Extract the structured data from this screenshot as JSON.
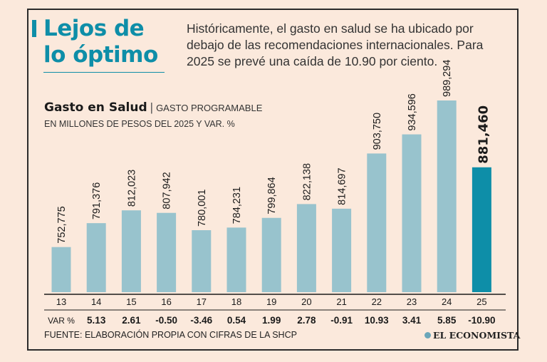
{
  "headline": "Lejos de lo óptimo",
  "intro": "Históricamente, el gasto en salud se ha ubicado por debajo de las recomendaciones internacionales. Para 2025 se prevé una caída de 10.90 por ciento.",
  "footer": {
    "source": "FUENTE: ELABORACIÓN PROPIA CON CIFRAS DE LA SHCP",
    "logo": "EL ECONOMISTA"
  },
  "colors": {
    "bar": "#98c3cd",
    "highlight": "#0e8ea8",
    "accent": "#0e8ea8",
    "background": "#fbe9dc"
  },
  "chart_data": {
    "type": "bar",
    "title": "Gasto en Salud",
    "subtitle": "GASTO PROGRAMABLE",
    "units": "EN MILLONES DE PESOS DEL 2025 Y VAR. %",
    "categories": [
      "13",
      "14",
      "15",
      "16",
      "17",
      "18",
      "19",
      "20",
      "21",
      "22",
      "23",
      "24",
      "25"
    ],
    "values": [
      752775,
      791376,
      812023,
      807942,
      780001,
      784231,
      799864,
      822138,
      814697,
      903750,
      934596,
      989294,
      881460
    ],
    "value_labels": [
      "752,775",
      "791,376",
      "812,023",
      "807,942",
      "780,001",
      "784,231",
      "799,864",
      "822,138",
      "814,697",
      "903,750",
      "934,596",
      "989,294",
      "881,460"
    ],
    "var_label": "VAR %",
    "var": [
      "5.13",
      "2.61",
      "-0.50",
      "-3.46",
      "0.54",
      "1.99",
      "2.78",
      "-0.91",
      "10.93",
      "3.41",
      "5.85",
      "-10.90"
    ],
    "highlight_index": 12,
    "ylim": [
      680000,
      989294
    ],
    "grid": false,
    "legend": "none"
  }
}
